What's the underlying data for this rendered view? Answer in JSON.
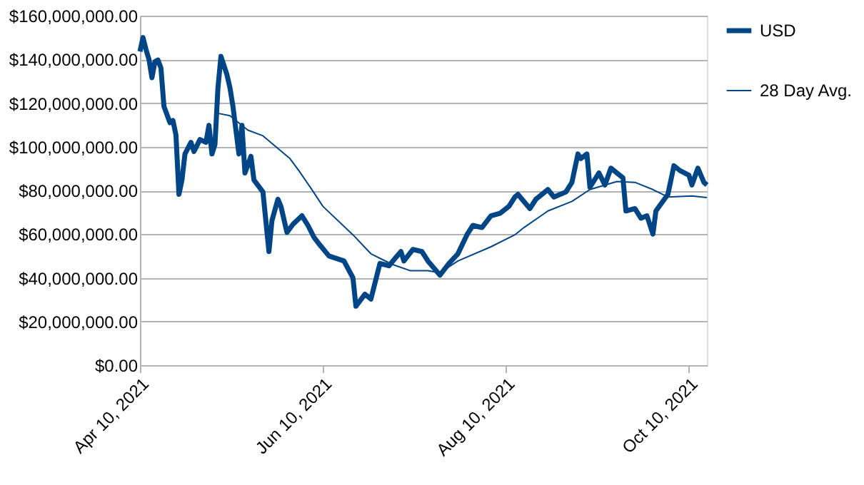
{
  "chart_data": {
    "type": "line",
    "xlim": [
      "2021-04-10",
      "2021-10-16"
    ],
    "xticks": [
      {
        "value": "2021-04-10",
        "label": "Apr 10, 2021"
      },
      {
        "value": "2021-06-10",
        "label": "Jun 10, 2021"
      },
      {
        "value": "2021-08-10",
        "label": "Aug 10, 2021"
      },
      {
        "value": "2021-10-10",
        "label": "Oct 10, 2021"
      }
    ],
    "ylim": [
      0,
      160000000
    ],
    "yticks": [
      {
        "value": 0,
        "label": "$0.00"
      },
      {
        "value": 20000000,
        "label": "$20,000,000.00"
      },
      {
        "value": 40000000,
        "label": "$40,000,000.00"
      },
      {
        "value": 60000000,
        "label": "$60,000,000.00"
      },
      {
        "value": 80000000,
        "label": "$80,000,000.00"
      },
      {
        "value": 100000000,
        "label": "$100,000,000.00"
      },
      {
        "value": 120000000,
        "label": "$120,000,000.00"
      },
      {
        "value": 140000000,
        "label": "$140,000,000.00"
      },
      {
        "value": 160000000,
        "label": "$160,000,000.00"
      }
    ],
    "grid": "y",
    "legend": "right",
    "marker": "none",
    "series": [
      {
        "name": "USD",
        "color": "#004586",
        "x": [
          "2021-04-10",
          "2021-04-11",
          "2021-04-12",
          "2021-04-13",
          "2021-04-14",
          "2021-04-15",
          "2021-04-16",
          "2021-04-17",
          "2021-04-18",
          "2021-04-20",
          "2021-04-21",
          "2021-04-22",
          "2021-04-23",
          "2021-04-24",
          "2021-04-25",
          "2021-04-27",
          "2021-04-28",
          "2021-04-30",
          "2021-05-02",
          "2021-05-03",
          "2021-05-04",
          "2021-05-05",
          "2021-05-06",
          "2021-05-07",
          "2021-05-09",
          "2021-05-10",
          "2021-05-11",
          "2021-05-13",
          "2021-05-14",
          "2021-05-15",
          "2021-05-17",
          "2021-05-18",
          "2021-05-21",
          "2021-05-23",
          "2021-05-24",
          "2021-05-26",
          "2021-05-27",
          "2021-05-29",
          "2021-05-31",
          "2021-06-03",
          "2021-06-05",
          "2021-06-07",
          "2021-06-09",
          "2021-06-12",
          "2021-06-17",
          "2021-06-20",
          "2021-06-21",
          "2021-06-24",
          "2021-06-26",
          "2021-06-29",
          "2021-07-02",
          "2021-07-04",
          "2021-07-06",
          "2021-07-07",
          "2021-07-10",
          "2021-07-13",
          "2021-07-15",
          "2021-07-19",
          "2021-07-22",
          "2021-07-25",
          "2021-07-28",
          "2021-07-30",
          "2021-08-02",
          "2021-08-05",
          "2021-08-08",
          "2021-08-11",
          "2021-08-13",
          "2021-08-14",
          "2021-08-18",
          "2021-08-20",
          "2021-08-24",
          "2021-08-26",
          "2021-08-30",
          "2021-09-01",
          "2021-09-03",
          "2021-09-04",
          "2021-09-06",
          "2021-09-07",
          "2021-09-10",
          "2021-09-12",
          "2021-09-14",
          "2021-09-18",
          "2021-09-19",
          "2021-09-22",
          "2021-09-24",
          "2021-09-26",
          "2021-09-28",
          "2021-09-29",
          "2021-10-03",
          "2021-10-05",
          "2021-10-07",
          "2021-10-10",
          "2021-10-11",
          "2021-10-13",
          "2021-10-15",
          "2021-10-16"
        ],
        "values": [
          143600000,
          150000000,
          144600000,
          140000000,
          131600000,
          139000000,
          139700000,
          136000000,
          118500000,
          111000000,
          112000000,
          105400000,
          78200000,
          84800000,
          96700000,
          102000000,
          97800000,
          103300000,
          102000000,
          109800000,
          96700000,
          101000000,
          127000000,
          141400000,
          133000000,
          127000000,
          118500000,
          96700000,
          109800000,
          88000000,
          95600000,
          84800000,
          79300000,
          52000000,
          66200000,
          76000000,
          72700000,
          60800000,
          64500000,
          68400000,
          64000000,
          58600000,
          55000000,
          50000000,
          47700000,
          40000000,
          27000000,
          32500000,
          30300000,
          46600000,
          45500000,
          48800000,
          52000000,
          47700000,
          53000000,
          52000000,
          47700000,
          41200000,
          46600000,
          51000000,
          59700000,
          64000000,
          63000000,
          68400000,
          69500000,
          72700000,
          77000000,
          78200000,
          71700000,
          76000000,
          80400000,
          77000000,
          79300000,
          83700000,
          96700000,
          94600000,
          96700000,
          81500000,
          88000000,
          82500000,
          90200000,
          85800000,
          70600000,
          71700000,
          67300000,
          68400000,
          60000000,
          70600000,
          78200000,
          91300000,
          89100000,
          87000000,
          82500000,
          90200000,
          83700000,
          82500000
        ]
      },
      {
        "name": "28 Day Avg.",
        "color": "#004586",
        "x": [
          "2021-05-06",
          "2021-05-10",
          "2021-05-16",
          "2021-05-21",
          "2021-05-30",
          "2021-06-02",
          "2021-06-06",
          "2021-06-10",
          "2021-06-20",
          "2021-06-26",
          "2021-07-03",
          "2021-07-09",
          "2021-07-15",
          "2021-07-19",
          "2021-07-25",
          "2021-08-05",
          "2021-08-13",
          "2021-08-16",
          "2021-08-24",
          "2021-09-01",
          "2021-09-07",
          "2021-09-16",
          "2021-09-22",
          "2021-09-28",
          "2021-10-03",
          "2021-10-11",
          "2021-10-16"
        ],
        "values": [
          115300000,
          114200000,
          107600000,
          105000000,
          94600000,
          89000000,
          81000000,
          72700000,
          59700000,
          51000000,
          46200000,
          43300000,
          43300000,
          42300000,
          47700000,
          54200000,
          59700000,
          63000000,
          70600000,
          75000000,
          80400000,
          84100000,
          83700000,
          80400000,
          77000000,
          77500000,
          76700000
        ]
      }
    ]
  }
}
